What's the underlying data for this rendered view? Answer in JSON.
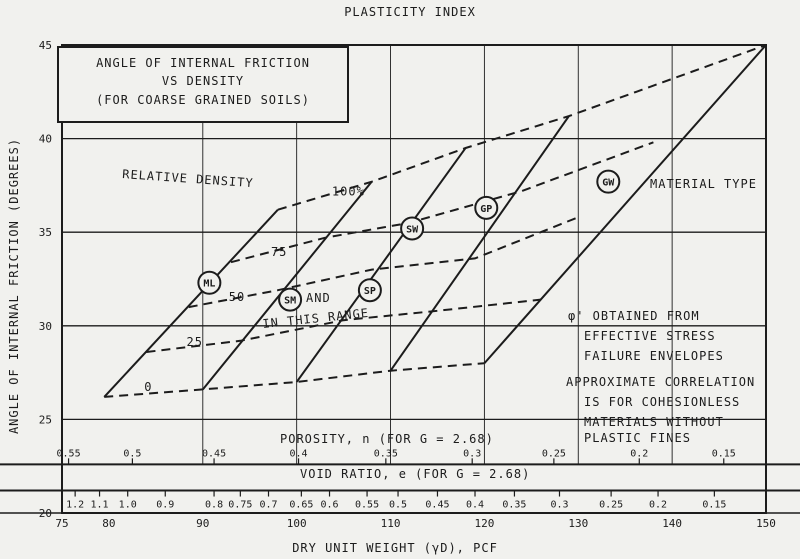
{
  "chart_data": {
    "type": "line",
    "top_label": "PLASTICITY INDEX",
    "title": "ANGLE OF INTERNAL FRICTION",
    "title_line2": "VS DENSITY",
    "subtitle": "(FOR COARSE GRAINED SOILS)",
    "xlabel": "DRY UNIT WEIGHT (γD), PCF",
    "ylabel": "ANGLE OF INTERNAL FRICTION (DEGREES)",
    "xlim": [
      75,
      150
    ],
    "ylim": [
      20,
      45
    ],
    "x_ticks": [
      "75",
      "80",
      "90",
      "100",
      "110",
      "120",
      "130",
      "140",
      "150"
    ],
    "x_tick_values": [
      75,
      80,
      90,
      100,
      110,
      120,
      130,
      140,
      150
    ],
    "y_ticks": [
      "20",
      "25",
      "30",
      "35",
      "40",
      "45"
    ],
    "y_tick_values": [
      20,
      25,
      30,
      35,
      40,
      45
    ],
    "grid": true,
    "porosity_label": "POROSITY, n (FOR G = 2.68)",
    "porosity_ticks": [
      {
        "label": "0.55",
        "x": 75.7
      },
      {
        "label": "0.5",
        "x": 82.5
      },
      {
        "label": "0.45",
        "x": 91.2
      },
      {
        "label": "0.4",
        "x": 100.2
      },
      {
        "label": "0.35",
        "x": 109.5
      },
      {
        "label": "0.3",
        "x": 118.7
      },
      {
        "label": "0.25",
        "x": 127.4
      },
      {
        "label": "0.2",
        "x": 136.5
      },
      {
        "label": "0.15",
        "x": 145.5
      }
    ],
    "void_label": "VOID RATIO, e (FOR G = 2.68)",
    "void_ticks": [
      {
        "label": "1.2",
        "x": 76.4
      },
      {
        "label": "1.1",
        "x": 79.0
      },
      {
        "label": "1.0",
        "x": 82.0
      },
      {
        "label": "0.9",
        "x": 86.0
      },
      {
        "label": "0.8",
        "x": 91.2
      },
      {
        "label": "0.75",
        "x": 94.0
      },
      {
        "label": "0.7",
        "x": 97.0
      },
      {
        "label": "0.65",
        "x": 100.5
      },
      {
        "label": "0.6",
        "x": 103.5
      },
      {
        "label": "0.55",
        "x": 107.5
      },
      {
        "label": "0.5",
        "x": 110.8
      },
      {
        "label": "0.45",
        "x": 115.0
      },
      {
        "label": "0.4",
        "x": 119.0
      },
      {
        "label": "0.35",
        "x": 123.2
      },
      {
        "label": "0.3",
        "x": 128.0
      },
      {
        "label": "0.25",
        "x": 133.5
      },
      {
        "label": "0.2",
        "x": 138.5
      },
      {
        "label": "0.15",
        "x": 144.5
      }
    ],
    "relative_density_label": "RELATIVE DENSITY",
    "relative_density_series": [
      {
        "name": "0",
        "points": [
          [
            79.5,
            26.2
          ],
          [
            90,
            26.6
          ],
          [
            100,
            27.0
          ],
          [
            110,
            27.6
          ],
          [
            120,
            28.0
          ]
        ]
      },
      {
        "name": "25",
        "points": [
          [
            84,
            28.6
          ],
          [
            94,
            29.2
          ],
          [
            105,
            30.3
          ],
          [
            115,
            30.8
          ],
          [
            126,
            31.4
          ]
        ]
      },
      {
        "name": "50",
        "points": [
          [
            88.5,
            31.0
          ],
          [
            98,
            31.9
          ],
          [
            108,
            33.0
          ],
          [
            119,
            33.6
          ],
          [
            130,
            35.8
          ]
        ]
      },
      {
        "name": "75",
        "points": [
          [
            93,
            33.4
          ],
          [
            103,
            34.7
          ],
          [
            112,
            35.5
          ],
          [
            124,
            37.2
          ],
          [
            138,
            39.8
          ]
        ]
      },
      {
        "name": "100%",
        "points": [
          [
            98,
            36.2
          ],
          [
            108,
            37.7
          ],
          [
            118,
            39.5
          ],
          [
            129,
            41.2
          ],
          [
            150,
            45.0
          ]
        ]
      }
    ],
    "material_types": [
      {
        "name": "ML",
        "points": [
          [
            79.5,
            26.2
          ],
          [
            98,
            36.2
          ]
        ]
      },
      {
        "name": "SM",
        "points": [
          [
            90,
            26.6
          ],
          [
            108,
            37.7
          ]
        ]
      },
      {
        "name": "SP",
        "points": [
          [
            100,
            27.0
          ],
          [
            118,
            39.5
          ]
        ]
      },
      {
        "name": "SW",
        "points": [
          [
            110,
            27.6
          ],
          [
            129,
            41.2
          ]
        ]
      },
      {
        "name": "GP",
        "points": [
          [
            120,
            28.0
          ],
          [
            150,
            45.0
          ]
        ]
      },
      {
        "name": "GW",
        "points": [
          [
            110,
            27.6
          ],
          [
            129,
            41.2
          ]
        ]
      }
    ],
    "material_labels": [
      {
        "name": "ML",
        "x": 90.7,
        "y": 32.3
      },
      {
        "name": "SM",
        "x": 99.3,
        "y": 31.4
      },
      {
        "name": "SP",
        "x": 107.8,
        "y": 31.9
      },
      {
        "name": "SW",
        "x": 112.3,
        "y": 35.2
      },
      {
        "name": "GP",
        "x": 120.2,
        "y": 36.3
      },
      {
        "name": "GW",
        "x": 133.2,
        "y": 37.7
      }
    ],
    "annotations": {
      "material_type": "MATERIAL TYPE",
      "and": "AND",
      "in_this_range": "IN THIS RANGE",
      "phi_note": [
        "φ' OBTAINED FROM",
        "EFFECTIVE STRESS",
        "FAILURE ENVELOPES"
      ],
      "approx_note": [
        "APPROXIMATE CORRELATION",
        "IS FOR COHESIONLESS",
        "MATERIALS WITHOUT",
        "PLASTIC FINES"
      ]
    }
  }
}
